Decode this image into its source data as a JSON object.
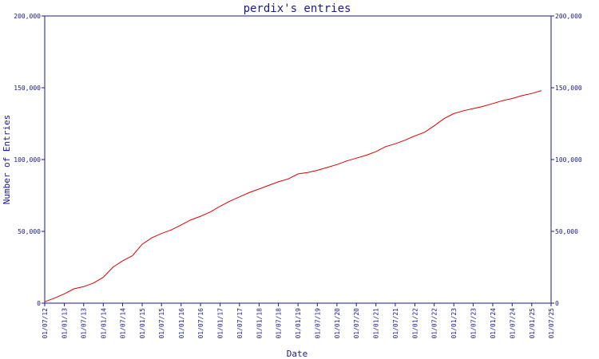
{
  "chart_data": {
    "type": "line",
    "title": "perdix's entries",
    "xlabel": "Date",
    "ylabel": "Number of Entries",
    "ylim": [
      0,
      200000
    ],
    "yticks": [
      0,
      50000,
      100000,
      150000,
      200000
    ],
    "ytick_labels": [
      "0",
      "50,000",
      "100,000",
      "150,000",
      "200,000"
    ],
    "xlim": [
      "2012-07-01",
      "2025-07-01"
    ],
    "xtick_labels": [
      "01/07/12",
      "01/01/13",
      "01/07/13",
      "01/01/14",
      "01/07/14",
      "01/01/15",
      "01/07/15",
      "01/01/16",
      "01/07/16",
      "01/01/17",
      "01/07/17",
      "01/01/18",
      "01/07/18",
      "01/01/19",
      "01/07/19",
      "01/01/20",
      "01/07/20",
      "01/01/21",
      "01/07/21",
      "01/01/22",
      "01/07/22",
      "01/01/23",
      "01/07/23",
      "01/01/24",
      "01/07/24",
      "01/01/25",
      "01/07/25"
    ],
    "grid": false,
    "colors": {
      "axis": "#1a1a8c",
      "series": "#e00000"
    },
    "series": [
      {
        "x": [
          "2012-07-01",
          "2012-10-01",
          "2013-01-01",
          "2013-04-01",
          "2013-07-01",
          "2013-10-01",
          "2014-01-01",
          "2014-04-01",
          "2014-07-01",
          "2014-10-01",
          "2015-01-01",
          "2015-04-01",
          "2015-07-01",
          "2015-10-01",
          "2016-01-01",
          "2016-04-01",
          "2016-07-01",
          "2016-10-01",
          "2017-01-01",
          "2017-04-01",
          "2017-07-01",
          "2017-10-01",
          "2018-01-01",
          "2018-04-01",
          "2018-07-01",
          "2018-10-01",
          "2019-01-01",
          "2019-04-01",
          "2019-07-01",
          "2019-10-01",
          "2020-01-01",
          "2020-04-01",
          "2020-07-01",
          "2020-10-01",
          "2021-01-01",
          "2021-04-01",
          "2021-07-01",
          "2021-10-01",
          "2022-01-01",
          "2022-04-01",
          "2022-07-01",
          "2022-10-01",
          "2023-01-01",
          "2023-04-01",
          "2023-07-01",
          "2023-10-01",
          "2024-01-01",
          "2024-04-01",
          "2024-07-01",
          "2024-10-01",
          "2025-01-01",
          "2025-04-01"
        ],
        "values": [
          1000,
          3500,
          6500,
          10000,
          11500,
          14000,
          18000,
          25000,
          29500,
          33000,
          41000,
          45500,
          48500,
          51000,
          54500,
          58000,
          60500,
          63500,
          67500,
          71000,
          74000,
          77000,
          79500,
          82000,
          84500,
          86500,
          90000,
          91000,
          92500,
          94500,
          96500,
          99000,
          101000,
          103000,
          105500,
          109000,
          111000,
          113500,
          116500,
          119000,
          123500,
          128500,
          132000,
          134000,
          135500,
          137000,
          139000,
          141000,
          142500,
          144500,
          146000,
          148000
        ]
      }
    ]
  }
}
